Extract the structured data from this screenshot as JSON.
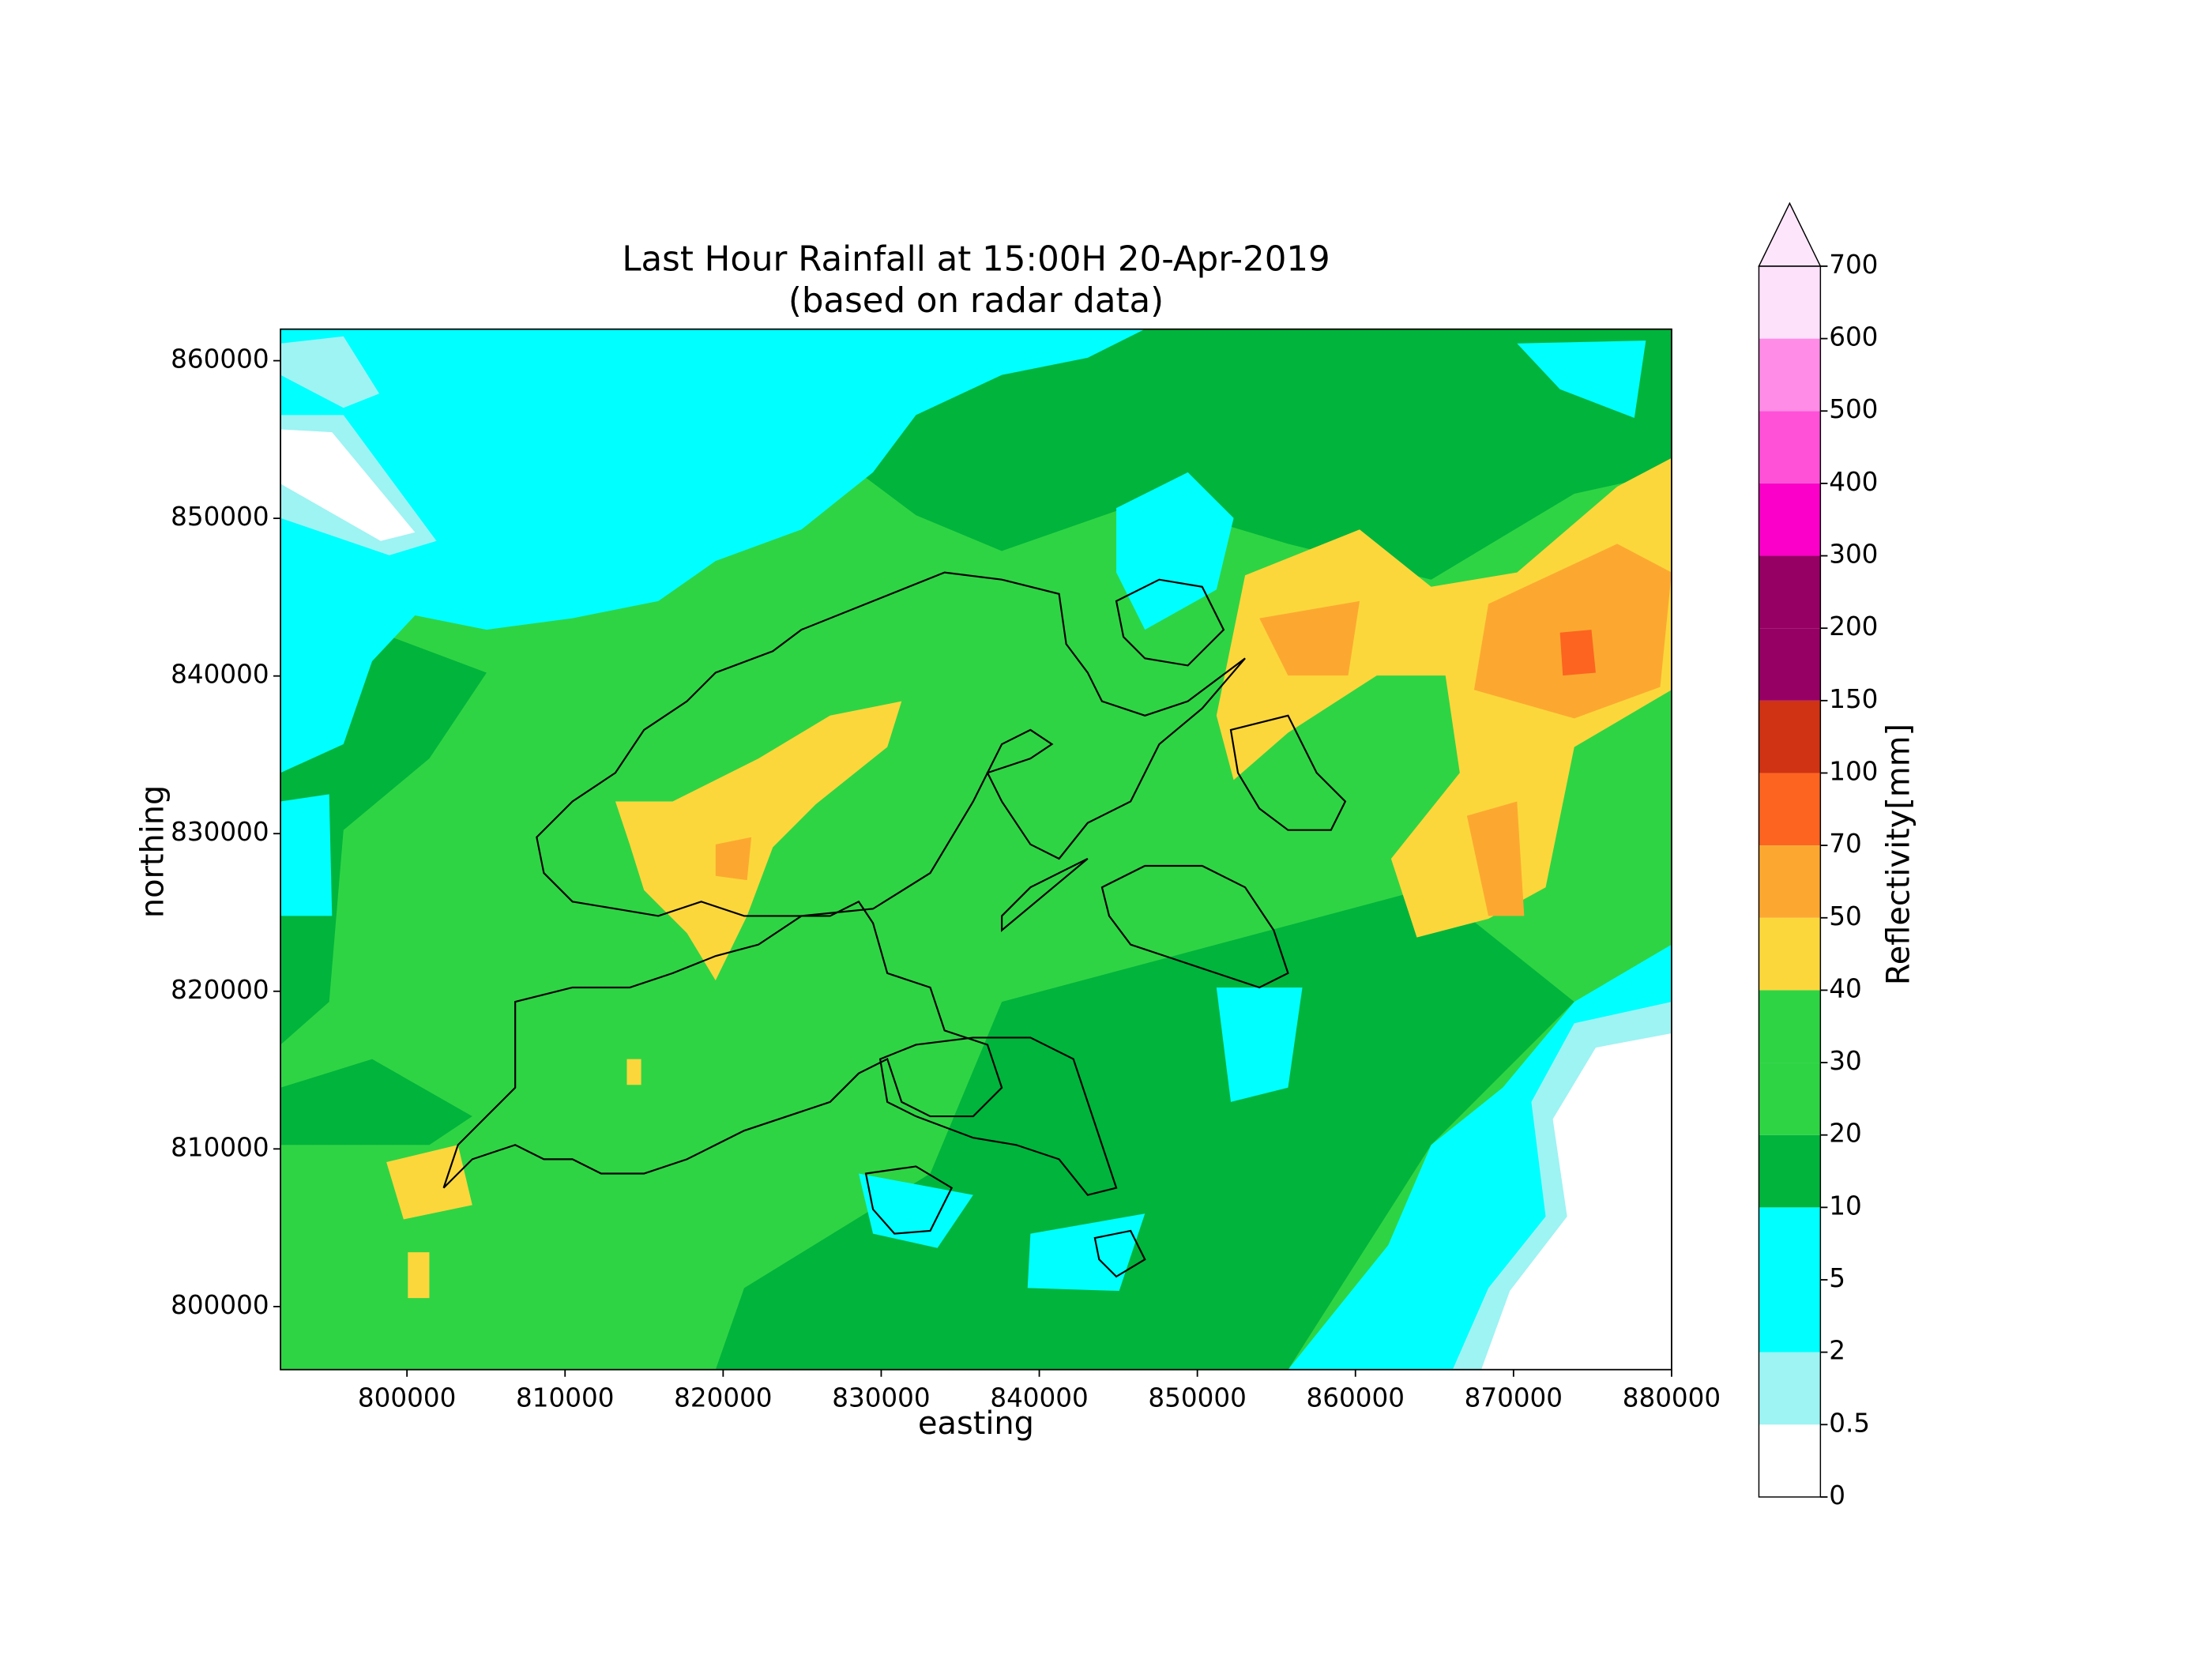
{
  "chart_data": {
    "type": "heatmap",
    "title": "Last Hour Rainfall at 15:00H 20-Apr-2019",
    "subtitle": "(based on radar data)",
    "x_label": "easting",
    "y_label": "northing",
    "xlim": [
      792000,
      880000
    ],
    "ylim": [
      796000,
      862000
    ],
    "xticks": [
      800000,
      810000,
      820000,
      830000,
      840000,
      850000,
      860000,
      870000,
      880000
    ],
    "yticks": [
      800000,
      810000,
      820000,
      830000,
      840000,
      850000,
      860000
    ],
    "colorbar": {
      "label": "Reflectivity[mm]",
      "levels": [
        0,
        0.5,
        2,
        5,
        10,
        20,
        30,
        40,
        50,
        70,
        100,
        150,
        200,
        300,
        400,
        500,
        600,
        700
      ],
      "colors": [
        "#ffffff",
        "#9ef3f3",
        "#00ffff",
        "#00ffff",
        "#00b43c",
        "#2fd444",
        "#2fd444",
        "#fcd73c",
        "#fca830",
        "#fc6420",
        "#d03214",
        "#960064",
        "#960064",
        "#fa00c8",
        "#ff50d8",
        "#ff8ce6",
        "#fde0fa"
      ],
      "extend_color": "#fde6fc"
    }
  }
}
